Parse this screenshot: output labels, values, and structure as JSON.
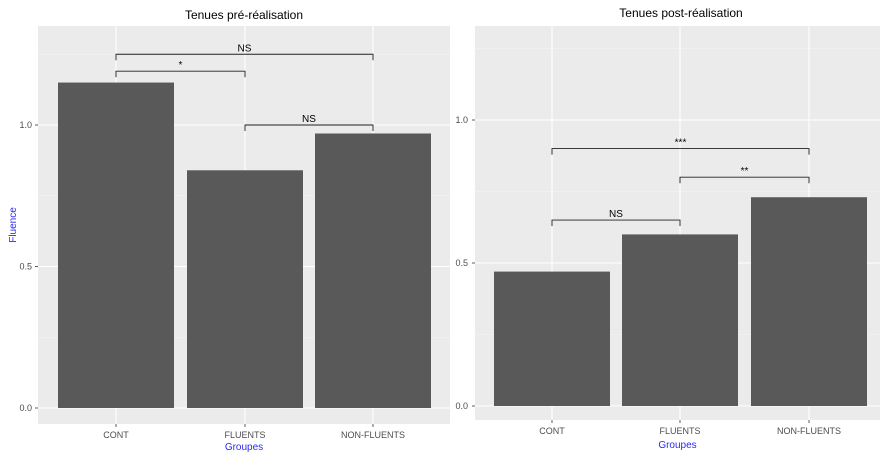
{
  "chart_data": [
    {
      "type": "bar",
      "title": "Tenues pré-réalisation",
      "categories": [
        "CONT",
        "FLUENTS",
        "NON-FLUENTS"
      ],
      "values": [
        1.15,
        0.84,
        0.97
      ],
      "xlabel": "Groupes",
      "ylabel": "Fluence",
      "ylim": [
        0,
        1.3
      ],
      "yticks": [
        0.0,
        0.5,
        1.0
      ],
      "ytick_labels": [
        "0.0",
        "0.5",
        "1.0"
      ],
      "grid": true,
      "bar_color": "#595959",
      "panel_color": "#ebebeb",
      "significance": [
        {
          "from": 0,
          "to": 2,
          "y": 1.25,
          "label": "NS"
        },
        {
          "from": 0,
          "to": 1,
          "y": 1.19,
          "label": "*"
        },
        {
          "from": 1,
          "to": 2,
          "y": 1.0,
          "label": "NS"
        }
      ]
    },
    {
      "type": "bar",
      "title": "Tenues post-réalisation",
      "categories": [
        "CONT",
        "FLUENTS",
        "NON-FLUENTS"
      ],
      "values": [
        0.47,
        0.6,
        0.73
      ],
      "xlabel": "Groupes",
      "ylabel": "",
      "ylim": [
        0,
        1.3
      ],
      "yticks": [
        0.0,
        0.5,
        1.0
      ],
      "ytick_labels": [
        "0.0",
        "0.5",
        "1.0"
      ],
      "grid": true,
      "bar_color": "#595959",
      "panel_color": "#ebebeb",
      "significance": [
        {
          "from": 0,
          "to": 1,
          "y": 0.65,
          "label": "NS"
        },
        {
          "from": 1,
          "to": 2,
          "y": 0.8,
          "label": "**"
        },
        {
          "from": 0,
          "to": 2,
          "y": 0.9,
          "label": "***"
        }
      ]
    }
  ]
}
